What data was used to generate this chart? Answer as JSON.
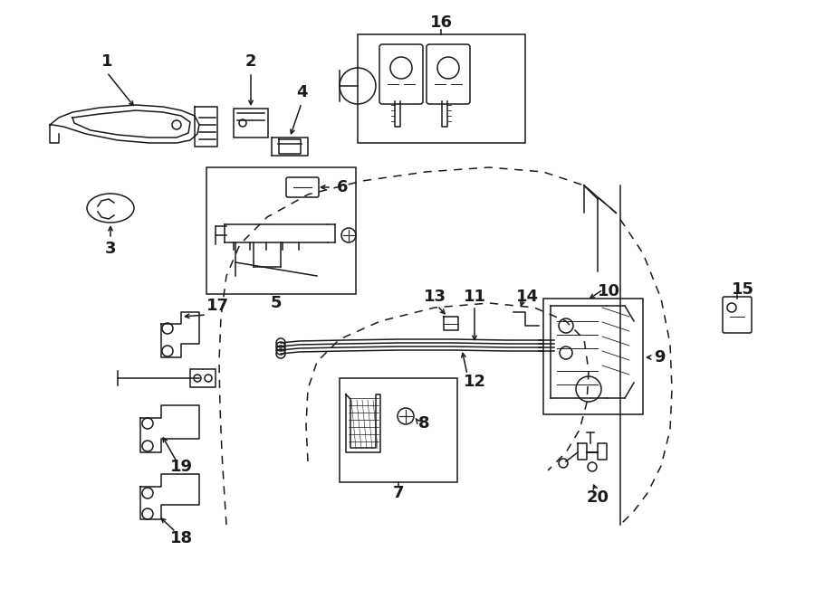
{
  "bg_color": "#ffffff",
  "line_color": "#1a1a1a",
  "fig_width": 9.0,
  "fig_height": 6.61,
  "dpi": 100,
  "lw": 1.1
}
